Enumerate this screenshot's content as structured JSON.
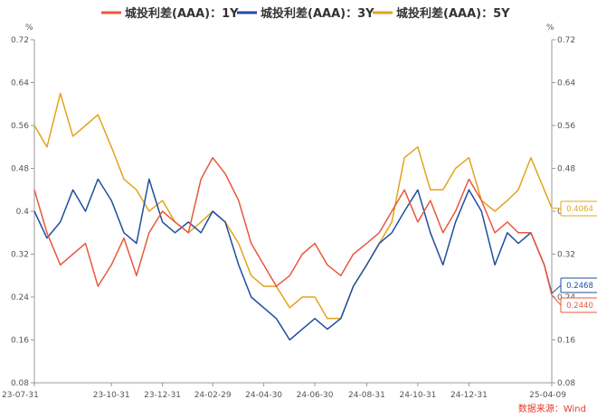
{
  "chart_data": {
    "type": "line",
    "unit_left": "%",
    "unit_right": "%",
    "source": "数据来源：Wind",
    "ylim": [
      0.08,
      0.72
    ],
    "yticks": [
      "0.72",
      "0.64",
      "0.56",
      "0.48",
      "0.4",
      "0.32",
      "0.24",
      "0.16",
      "0.08"
    ],
    "x_tick_labels": [
      "23-07-31",
      "23-10-31",
      "23-12-31",
      "24-02-29",
      "24-04-30",
      "24-06-30",
      "24-08-31",
      "24-10-31",
      "24-12-31",
      "25-04-09"
    ],
    "grid": false,
    "legend_position": "top-center",
    "series": [
      {
        "name": "城投利差(AAA)：1Y",
        "color": "#e8583d",
        "end_label": "0.2440",
        "x": [
          "23-07-31",
          "23-08-15",
          "23-08-31",
          "23-09-15",
          "23-09-30",
          "23-10-15",
          "23-10-31",
          "23-11-15",
          "23-11-30",
          "23-12-15",
          "23-12-31",
          "24-01-15",
          "24-01-31",
          "24-02-15",
          "24-02-29",
          "24-03-15",
          "24-03-31",
          "24-04-15",
          "24-04-30",
          "24-05-15",
          "24-05-31",
          "24-06-15",
          "24-06-30",
          "24-07-15",
          "24-07-31",
          "24-08-15",
          "24-08-31",
          "24-09-15",
          "24-09-30",
          "24-10-15",
          "24-10-31",
          "24-11-15",
          "24-11-30",
          "24-12-15",
          "24-12-31",
          "25-01-15",
          "25-01-31",
          "25-02-15",
          "25-02-28",
          "25-03-15",
          "25-03-31",
          "25-04-09"
        ],
        "values": [
          0.44,
          0.36,
          0.3,
          0.32,
          0.34,
          0.26,
          0.3,
          0.35,
          0.28,
          0.36,
          0.4,
          0.38,
          0.36,
          0.46,
          0.5,
          0.47,
          0.42,
          0.34,
          0.3,
          0.26,
          0.28,
          0.32,
          0.34,
          0.3,
          0.28,
          0.32,
          0.34,
          0.36,
          0.4,
          0.44,
          0.38,
          0.42,
          0.36,
          0.4,
          0.46,
          0.42,
          0.36,
          0.38,
          0.36,
          0.36,
          0.3,
          0.244
        ]
      },
      {
        "name": "城投利差(AAA)：3Y",
        "color": "#1f4e9e",
        "end_label": "0.2468",
        "x": [
          "23-07-31",
          "23-08-15",
          "23-08-31",
          "23-09-15",
          "23-09-30",
          "23-10-15",
          "23-10-31",
          "23-11-15",
          "23-11-30",
          "23-12-15",
          "23-12-31",
          "24-01-15",
          "24-01-31",
          "24-02-15",
          "24-02-29",
          "24-03-15",
          "24-03-31",
          "24-04-15",
          "24-04-30",
          "24-05-15",
          "24-05-31",
          "24-06-15",
          "24-06-30",
          "24-07-15",
          "24-07-31",
          "24-08-15",
          "24-08-31",
          "24-09-15",
          "24-09-30",
          "24-10-15",
          "24-10-31",
          "24-11-15",
          "24-11-30",
          "24-12-15",
          "24-12-31",
          "25-01-15",
          "25-01-31",
          "25-02-15",
          "25-02-28",
          "25-03-15",
          "25-03-31",
          "25-04-09"
        ],
        "values": [
          0.4,
          0.35,
          0.38,
          0.44,
          0.4,
          0.46,
          0.42,
          0.36,
          0.34,
          0.46,
          0.38,
          0.36,
          0.38,
          0.36,
          0.4,
          0.38,
          0.3,
          0.24,
          0.22,
          0.2,
          0.16,
          0.18,
          0.2,
          0.18,
          0.2,
          0.26,
          0.3,
          0.34,
          0.36,
          0.4,
          0.44,
          0.36,
          0.3,
          0.38,
          0.44,
          0.4,
          0.3,
          0.36,
          0.34,
          0.36,
          0.3,
          0.2468
        ]
      },
      {
        "name": "城投利差(AAA)：5Y",
        "color": "#e3a31b",
        "end_label": "0.4064",
        "x": [
          "23-07-31",
          "23-08-15",
          "23-08-31",
          "23-09-15",
          "23-09-30",
          "23-10-15",
          "23-10-31",
          "23-11-15",
          "23-11-30",
          "23-12-15",
          "23-12-31",
          "24-01-15",
          "24-01-31",
          "24-02-15",
          "24-02-29",
          "24-03-15",
          "24-03-31",
          "24-04-15",
          "24-04-30",
          "24-05-15",
          "24-05-31",
          "24-06-15",
          "24-06-30",
          "24-07-15",
          "24-07-31",
          "24-08-15",
          "24-08-31",
          "24-09-15",
          "24-09-30",
          "24-10-15",
          "24-10-31",
          "24-11-15",
          "24-11-30",
          "24-12-15",
          "24-12-31",
          "25-01-15",
          "25-01-31",
          "25-02-15",
          "25-02-28",
          "25-03-15",
          "25-03-31",
          "25-04-09"
        ],
        "values": [
          0.56,
          0.52,
          0.62,
          0.54,
          0.56,
          0.58,
          0.52,
          0.46,
          0.44,
          0.4,
          0.42,
          0.38,
          0.36,
          0.38,
          0.4,
          0.38,
          0.34,
          0.28,
          0.26,
          0.26,
          0.22,
          0.24,
          0.24,
          0.2,
          0.2,
          0.26,
          0.3,
          0.34,
          0.38,
          0.5,
          0.52,
          0.44,
          0.44,
          0.48,
          0.5,
          0.42,
          0.4,
          0.42,
          0.44,
          0.5,
          0.44,
          0.4064
        ]
      }
    ]
  }
}
